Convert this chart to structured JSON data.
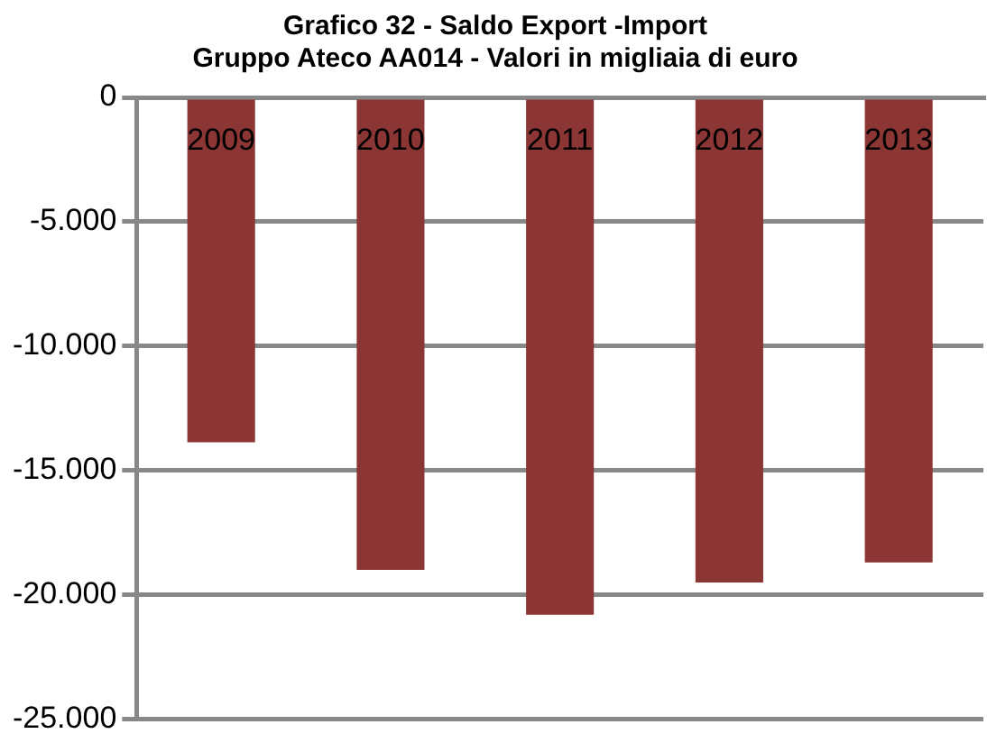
{
  "chart_data": {
    "type": "bar",
    "title": [
      "Grafico 32 - Saldo Export -Import",
      "Gruppo Ateco AA014 - Valori in migliaia di euro"
    ],
    "categories": [
      "2009",
      "2010",
      "2011",
      "2012",
      "2013"
    ],
    "values": [
      -13870,
      -19000,
      -20800,
      -19500,
      -18700
    ],
    "color": "#8b3535",
    "ylim": [
      -25000,
      0
    ],
    "yticks": [
      {
        "value": -25000,
        "label": "-25.000"
      },
      {
        "value": -20000,
        "label": "-20.000"
      },
      {
        "value": -15000,
        "label": "-15.000"
      },
      {
        "value": -10000,
        "label": "-10.000"
      },
      {
        "value": -5000,
        "label": "-5.000"
      },
      0
    ],
    "grid": "y"
  }
}
